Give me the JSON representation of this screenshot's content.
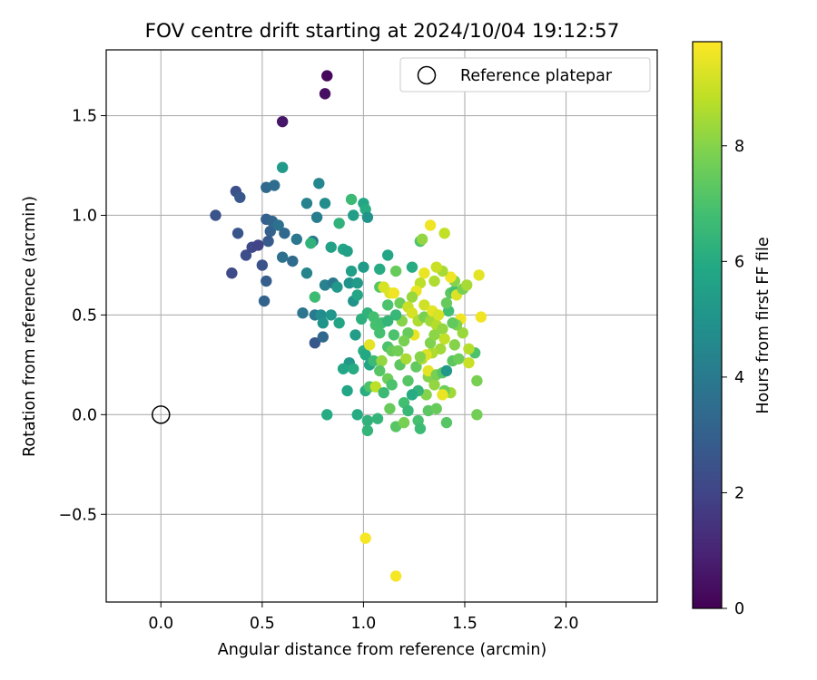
{
  "chart_data": {
    "type": "scatter",
    "title": "FOV centre drift starting at 2024/10/04 19:12:57",
    "xlabel": "Angular distance from reference (arcmin)",
    "ylabel": "Rotation from reference (arcmin)",
    "xlim": [
      -0.27,
      2.45
    ],
    "ylim": [
      -0.94,
      1.83
    ],
    "xticks": [
      "0.0",
      "0.5",
      "1.0",
      "1.5",
      "2.0"
    ],
    "yticks": [
      "−0.5",
      "0.0",
      "0.5",
      "1.0",
      "1.5"
    ],
    "grid": true,
    "legend": {
      "position": "top-right",
      "entries": [
        "Reference platepar"
      ]
    },
    "reference_point": {
      "x": 0.0,
      "y": 0.0
    },
    "colorbar": {
      "label": "Hours from first FF file",
      "range": [
        0,
        9.8
      ],
      "ticks": [
        "0",
        "2",
        "4",
        "6",
        "8"
      ],
      "colormap": "viridis"
    },
    "points": [
      [
        0.82,
        1.7,
        0.2
      ],
      [
        0.81,
        1.61,
        0.4
      ],
      [
        0.6,
        1.47,
        0.6
      ],
      [
        0.37,
        1.12,
        2.4
      ],
      [
        0.39,
        1.09,
        2.7
      ],
      [
        0.27,
        1.0,
        2.5
      ],
      [
        0.38,
        0.91,
        2.6
      ],
      [
        0.42,
        0.8,
        2.3
      ],
      [
        0.45,
        0.84,
        2.1
      ],
      [
        0.48,
        0.85,
        2.0
      ],
      [
        0.35,
        0.71,
        2.2
      ],
      [
        0.5,
        0.75,
        2.5
      ],
      [
        0.52,
        0.67,
        2.9
      ],
      [
        0.51,
        0.57,
        3.1
      ],
      [
        0.52,
        0.98,
        3.0
      ],
      [
        0.54,
        0.92,
        3.0
      ],
      [
        0.53,
        0.87,
        2.8
      ],
      [
        0.55,
        0.97,
        3.2
      ],
      [
        0.52,
        1.14,
        3.3
      ],
      [
        0.56,
        1.15,
        3.5
      ],
      [
        0.6,
        1.24,
        5.3
      ],
      [
        0.58,
        0.95,
        3.7
      ],
      [
        0.61,
        0.91,
        3.3
      ],
      [
        0.6,
        0.79,
        3.6
      ],
      [
        0.65,
        0.77,
        3.4
      ],
      [
        0.67,
        0.88,
        3.9
      ],
      [
        0.72,
        1.06,
        4.3
      ],
      [
        0.78,
        1.16,
        4.5
      ],
      [
        0.77,
        0.99,
        4.1
      ],
      [
        0.81,
        1.06,
        4.8
      ],
      [
        0.75,
        0.87,
        3.9
      ],
      [
        0.74,
        0.86,
        6.3
      ],
      [
        0.72,
        0.71,
        4.4
      ],
      [
        0.7,
        0.51,
        3.8
      ],
      [
        0.76,
        0.5,
        4.0
      ],
      [
        0.76,
        0.59,
        6.7
      ],
      [
        0.79,
        0.5,
        4.7
      ],
      [
        0.8,
        0.46,
        5.0
      ],
      [
        0.84,
        0.5,
        5.1
      ],
      [
        0.76,
        0.36,
        2.7
      ],
      [
        0.8,
        0.39,
        3.3
      ],
      [
        0.81,
        0.65,
        4.3
      ],
      [
        0.85,
        0.66,
        3.9
      ],
      [
        0.87,
        0.64,
        5.2
      ],
      [
        0.84,
        0.84,
        5.6
      ],
      [
        0.88,
        0.96,
        6.3
      ],
      [
        0.9,
        0.83,
        5.8
      ],
      [
        0.92,
        0.82,
        5.5
      ],
      [
        0.94,
        1.08,
        6.6
      ],
      [
        0.95,
        1.0,
        5.4
      ],
      [
        1.0,
        1.06,
        5.8
      ],
      [
        1.01,
        1.03,
        6.0
      ],
      [
        1.02,
        0.99,
        5.0
      ],
      [
        1.0,
        0.74,
        5.3
      ],
      [
        0.94,
        0.72,
        5.5
      ],
      [
        0.93,
        0.66,
        4.9
      ],
      [
        0.97,
        0.66,
        5.3
      ],
      [
        0.95,
        0.57,
        5.0
      ],
      [
        0.97,
        0.6,
        5.8
      ],
      [
        0.88,
        0.46,
        5.7
      ],
      [
        0.96,
        0.4,
        5.4
      ],
      [
        0.99,
        0.48,
        6.2
      ],
      [
        1.02,
        0.51,
        6.3
      ],
      [
        1.0,
        0.32,
        6.1
      ],
      [
        1.01,
        0.3,
        5.9
      ],
      [
        1.03,
        0.25,
        5.7
      ],
      [
        0.93,
        0.26,
        5.2
      ],
      [
        0.9,
        0.23,
        5.8
      ],
      [
        0.95,
        0.23,
        6.0
      ],
      [
        0.92,
        0.12,
        5.8
      ],
      [
        1.01,
        0.12,
        6.1
      ],
      [
        1.03,
        0.14,
        7.0
      ],
      [
        0.82,
        0.0,
        6.0
      ],
      [
        0.97,
        0.0,
        6.0
      ],
      [
        1.02,
        -0.03,
        6.3
      ],
      [
        1.02,
        -0.08,
        6.4
      ],
      [
        1.07,
        -0.02,
        6.4
      ],
      [
        1.05,
        0.27,
        6.6
      ],
      [
        1.08,
        0.73,
        6.0
      ],
      [
        1.12,
        0.8,
        5.8
      ],
      [
        1.16,
        0.72,
        7.5
      ],
      [
        1.08,
        0.64,
        7.2
      ],
      [
        1.1,
        0.64,
        9.2
      ],
      [
        1.13,
        0.61,
        9.3
      ],
      [
        1.15,
        0.61,
        9.6
      ],
      [
        1.18,
        0.56,
        7.6
      ],
      [
        1.12,
        0.55,
        7.0
      ],
      [
        1.05,
        0.49,
        6.8
      ],
      [
        1.06,
        0.45,
        6.9
      ],
      [
        1.08,
        0.41,
        6.9
      ],
      [
        1.03,
        0.35,
        9.4
      ],
      [
        1.12,
        0.34,
        7.0
      ],
      [
        1.14,
        0.32,
        7.5
      ],
      [
        1.09,
        0.27,
        8.2
      ],
      [
        1.08,
        0.22,
        7.2
      ],
      [
        1.12,
        0.18,
        7.6
      ],
      [
        1.14,
        0.15,
        7.0
      ],
      [
        1.06,
        0.14,
        8.8
      ],
      [
        1.1,
        0.11,
        6.6
      ],
      [
        1.13,
        0.03,
        7.5
      ],
      [
        1.16,
        -0.06,
        7.2
      ],
      [
        1.2,
        -0.04,
        7.8
      ],
      [
        1.2,
        0.06,
        6.8
      ],
      [
        1.22,
        0.02,
        6.5
      ],
      [
        1.27,
        -0.03,
        6.9
      ],
      [
        1.28,
        -0.07,
        6.7
      ],
      [
        1.32,
        0.02,
        7.3
      ],
      [
        1.36,
        0.03,
        7.5
      ],
      [
        1.41,
        -0.04,
        7.2
      ],
      [
        1.43,
        0.11,
        8.4
      ],
      [
        1.4,
        0.12,
        7.6
      ],
      [
        1.39,
        0.1,
        9.5
      ],
      [
        1.35,
        0.15,
        8.2
      ],
      [
        1.31,
        0.1,
        8.0
      ],
      [
        1.27,
        0.12,
        6.4
      ],
      [
        1.24,
        0.1,
        6.0
      ],
      [
        1.22,
        0.17,
        7.2
      ],
      [
        1.26,
        0.24,
        7.4
      ],
      [
        1.29,
        0.28,
        8.6
      ],
      [
        1.32,
        0.19,
        8.0
      ],
      [
        1.32,
        0.22,
        9.4
      ],
      [
        1.36,
        0.2,
        7.8
      ],
      [
        1.39,
        0.21,
        7.2
      ],
      [
        1.41,
        0.22,
        5.2
      ],
      [
        1.44,
        0.27,
        7.3
      ],
      [
        1.47,
        0.28,
        7.6
      ],
      [
        1.52,
        0.26,
        9.0
      ],
      [
        1.56,
        0.17,
        7.8
      ],
      [
        1.56,
        0.0,
        7.7
      ],
      [
        1.55,
        0.31,
        7.0
      ],
      [
        1.52,
        0.33,
        8.7
      ],
      [
        1.49,
        0.41,
        8.3
      ],
      [
        1.48,
        0.48,
        9.6
      ],
      [
        1.46,
        0.45,
        7.9
      ],
      [
        1.44,
        0.46,
        7.4
      ],
      [
        1.42,
        0.52,
        6.8
      ],
      [
        1.41,
        0.56,
        7.5
      ],
      [
        1.43,
        0.61,
        7.3
      ],
      [
        1.45,
        0.62,
        6.9
      ],
      [
        1.46,
        0.6,
        9.3
      ],
      [
        1.49,
        0.63,
        7.8
      ],
      [
        1.45,
        0.67,
        8.0
      ],
      [
        1.43,
        0.69,
        9.6
      ],
      [
        1.39,
        0.72,
        8.5
      ],
      [
        1.36,
        0.74,
        9.0
      ],
      [
        1.35,
        0.67,
        8.6
      ],
      [
        1.3,
        0.71,
        9.5
      ],
      [
        1.28,
        0.66,
        8.8
      ],
      [
        1.26,
        0.62,
        9.5
      ],
      [
        1.24,
        0.59,
        8.3
      ],
      [
        1.22,
        0.54,
        9.0
      ],
      [
        1.24,
        0.51,
        9.2
      ],
      [
        1.27,
        0.47,
        8.6
      ],
      [
        1.3,
        0.49,
        7.8
      ],
      [
        1.33,
        0.47,
        8.4
      ],
      [
        1.36,
        0.45,
        8.7
      ],
      [
        1.39,
        0.43,
        8.2
      ],
      [
        1.4,
        0.38,
        8.9
      ],
      [
        1.38,
        0.33,
        8.4
      ],
      [
        1.34,
        0.31,
        8.6
      ],
      [
        1.31,
        0.3,
        9.3
      ],
      [
        1.28,
        0.29,
        8.0
      ],
      [
        1.25,
        0.4,
        9.5
      ],
      [
        1.22,
        0.41,
        7.5
      ],
      [
        1.2,
        0.37,
        7.8
      ],
      [
        1.17,
        0.32,
        7.7
      ],
      [
        1.19,
        0.47,
        8.0
      ],
      [
        1.16,
        0.5,
        6.5
      ],
      [
        1.24,
        0.74,
        6.0
      ],
      [
        1.28,
        0.87,
        7.0
      ],
      [
        1.29,
        0.88,
        8.2
      ],
      [
        1.33,
        0.95,
        9.6
      ],
      [
        1.4,
        0.91,
        8.9
      ],
      [
        1.57,
        0.7,
        9.4
      ],
      [
        1.58,
        0.49,
        9.6
      ],
      [
        1.51,
        0.65,
        8.5
      ],
      [
        1.01,
        -0.62,
        9.7
      ],
      [
        1.16,
        -0.81,
        9.7
      ],
      [
        1.3,
        0.55,
        9.1
      ],
      [
        1.34,
        0.52,
        9.4
      ],
      [
        1.37,
        0.5,
        9.2
      ],
      [
        1.33,
        0.36,
        7.9
      ],
      [
        1.35,
        0.4,
        8.1
      ],
      [
        1.18,
        0.25,
        7.3
      ],
      [
        1.21,
        0.28,
        8.5
      ],
      [
        1.15,
        0.4,
        7.0
      ],
      [
        1.09,
        0.46,
        6.8
      ],
      [
        1.12,
        0.47,
        6.4
      ],
      [
        1.45,
        0.35,
        8.0
      ]
    ]
  }
}
